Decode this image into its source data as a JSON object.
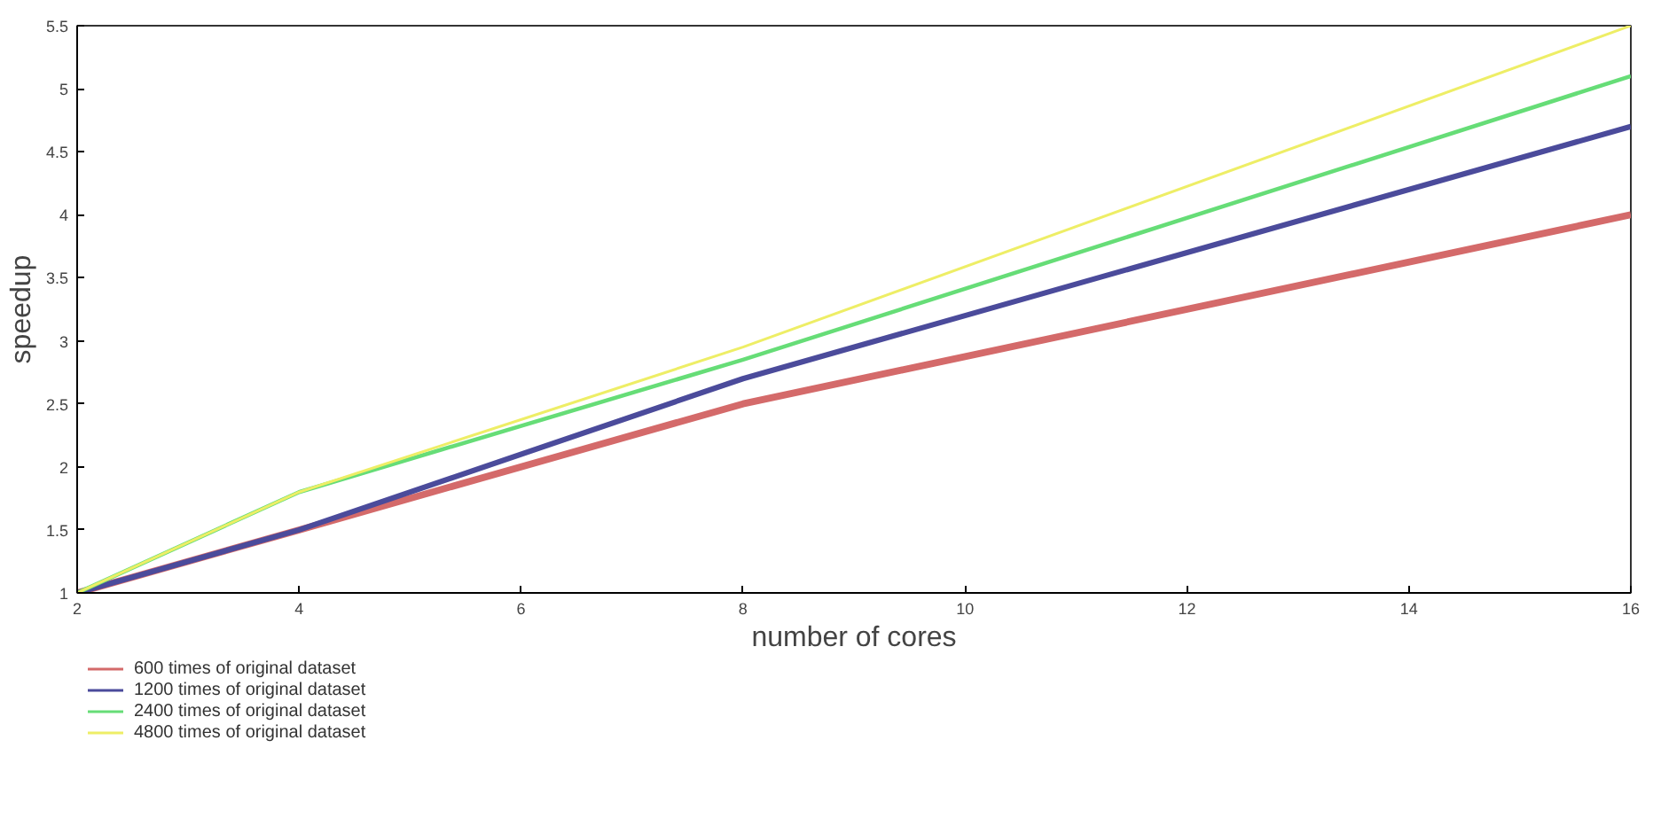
{
  "chart_data": {
    "type": "line",
    "xlabel": "number of cores",
    "ylabel": "speedup",
    "x": [
      2,
      4,
      8,
      16
    ],
    "series": [
      {
        "name": "600 times of original dataset",
        "color": "#d46a6a",
        "values": [
          1,
          1.5,
          2.5,
          4
        ]
      },
      {
        "name": "1200 times of original dataset",
        "color": "#4b4b9b",
        "values": [
          1,
          1.5,
          2.7,
          4.7
        ]
      },
      {
        "name": "2400 times of original dataset",
        "color": "#66dd77",
        "values": [
          1,
          1.8,
          2.85,
          5.1
        ]
      },
      {
        "name": "4800 times of original dataset",
        "color": "#eeee66",
        "values": [
          1,
          1.8,
          2.95,
          5.5
        ]
      }
    ],
    "xlim": [
      2,
      16
    ],
    "xticks": [
      2,
      4,
      6,
      8,
      10,
      12,
      14,
      16
    ],
    "ylim": [
      1,
      5.5
    ],
    "yticks": [
      1,
      1.5,
      2,
      2.5,
      3,
      3.5,
      4,
      4.5,
      5,
      5.5
    ],
    "grid": false,
    "legend": "bottom left",
    "marker": "none",
    "line_style": "solid"
  }
}
